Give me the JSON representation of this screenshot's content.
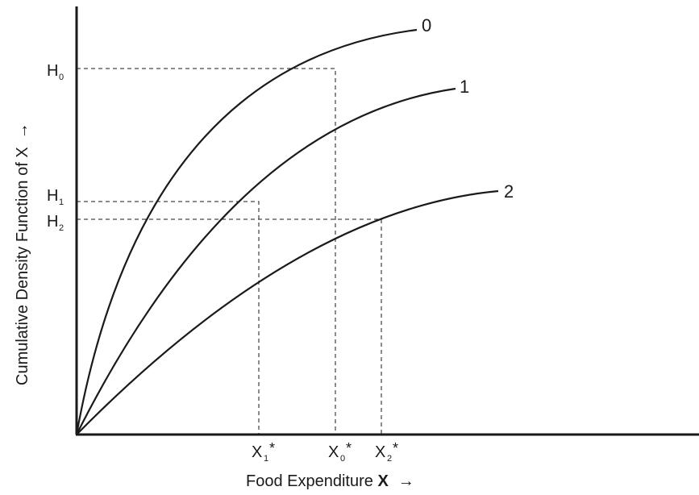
{
  "axes": {
    "y_label": "Cumulative Density Function of X",
    "y_arrow": "→",
    "x_label_text": "Food Expenditure ",
    "x_label_var": "X",
    "x_arrow": "→"
  },
  "curves": [
    {
      "name": "0"
    },
    {
      "name": "1"
    },
    {
      "name": "2"
    }
  ],
  "y_marks": [
    {
      "base": "H",
      "sub": "0"
    },
    {
      "base": "H",
      "sub": "1"
    },
    {
      "base": "H",
      "sub": "2"
    }
  ],
  "x_marks": [
    {
      "base": "X",
      "sub": "1",
      "sup": "*"
    },
    {
      "base": "X",
      "sub": "0",
      "sup": "*"
    },
    {
      "base": "X",
      "sub": "2",
      "sup": "*"
    }
  ]
}
